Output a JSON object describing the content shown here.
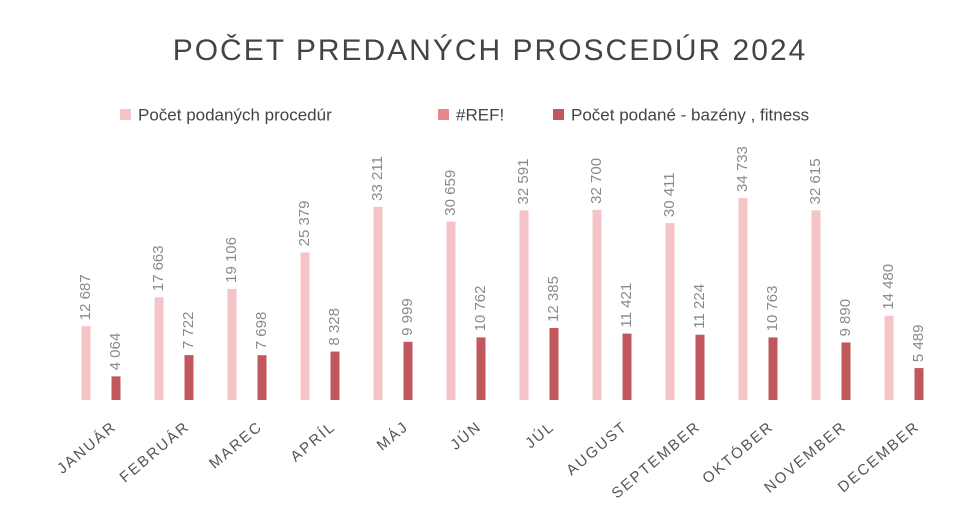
{
  "chart_data": {
    "type": "bar",
    "title": "POČET PREDANÝCH PROSCEDÚR 2024",
    "categories": [
      "JANUÁR",
      "FEBRUÁR",
      "MAREC",
      "APRÍL",
      "MÁJ",
      "JÚN",
      "JÚL",
      "AUGUST",
      "SEPTEMBER",
      "OKTÓBER",
      "NOVEMBER",
      "DECEMBER"
    ],
    "series": [
      {
        "name": "Počet podaných procedúr",
        "color": "#f4c4c8",
        "values": [
          12687,
          17663,
          19106,
          25379,
          33211,
          30659,
          32591,
          32700,
          30411,
          34733,
          32615,
          14480
        ],
        "value_labels": [
          "12 687",
          "17 663",
          "19 106",
          "25 379",
          "33 211",
          "30 659",
          "32 591",
          "32 700",
          "30 411",
          "34 733",
          "32 615",
          "14 480"
        ]
      },
      {
        "name": "#REF!",
        "color": "#e8868a",
        "values": [
          null,
          null,
          null,
          null,
          null,
          null,
          null,
          null,
          null,
          null,
          null,
          null
        ]
      },
      {
        "name": "Počet podané - bazény , fitness",
        "color": "#c0575c",
        "values": [
          4064,
          7722,
          7698,
          8328,
          9999,
          10762,
          12385,
          11421,
          11224,
          10763,
          9890,
          5489
        ],
        "value_labels": [
          "4 064",
          "7 722",
          "7 698",
          "8 328",
          "9 999",
          "10 762",
          "12 385",
          "11 421",
          "11 224",
          "10 763",
          "9 890",
          "5 489"
        ]
      }
    ]
  }
}
